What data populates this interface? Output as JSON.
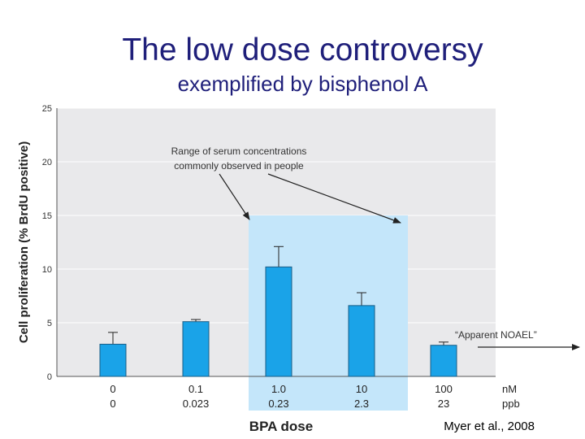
{
  "slide": {
    "title": "The low dose controversy",
    "subtitle": "exemplified by bisphenol A",
    "citation": "Myer et al., 2008"
  },
  "chart_data": {
    "type": "bar",
    "ylabel": "Cell proliferation (% BrdU positive)",
    "xlabel": "BPA dose",
    "ylim": [
      0,
      25
    ],
    "yticks": [
      0,
      5,
      10,
      15,
      20,
      25
    ],
    "grid": true,
    "categories_nM": [
      "0",
      "0.1",
      "1.0",
      "10",
      "100"
    ],
    "categories_ppb": [
      "0",
      "0.023",
      "0.23",
      "2.3",
      "23"
    ],
    "unit_row1": "nM",
    "unit_row2": "ppb",
    "values": [
      3.0,
      5.1,
      10.2,
      6.6,
      2.9
    ],
    "error_upper": [
      4.1,
      5.3,
      12.1,
      7.8,
      3.2
    ],
    "highlight_range": {
      "from_index": 2,
      "to_index": 3
    },
    "annotation_range": "Range of serum concentrations commonly observed in people",
    "annotation_range_line1": "Range of serum concentrations",
    "annotation_range_line2": "commonly observed in people",
    "annotation_noael": "“Apparent NOAEL”",
    "colors": {
      "bar": "#1aa3e8",
      "highlight": "#c4e6fa",
      "plot_bg": "#e9e9eb",
      "grid": "#ffffff",
      "title": "#1f1f7a"
    }
  }
}
